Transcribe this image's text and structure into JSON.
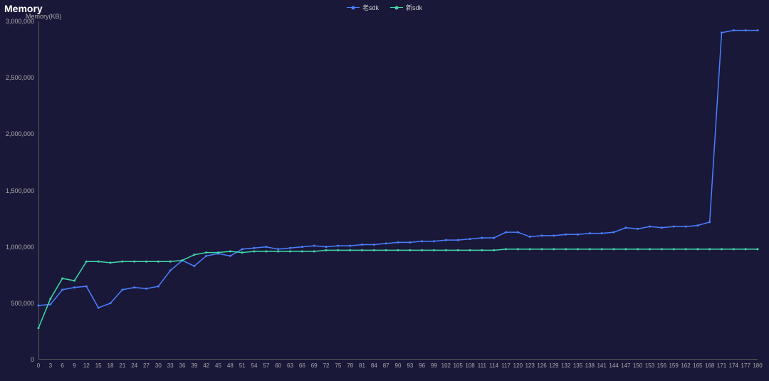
{
  "chart": {
    "title": "Memory",
    "y_axis_label": "Memory(KB)",
    "type": "line",
    "background_color": "#1a1838",
    "text_color": "#aaaaaa",
    "title_color": "#ffffff",
    "title_fontsize": 14,
    "tick_fontsize": 9,
    "axis_color": "#555555",
    "legend_position": "top-center",
    "legend_fontsize": 9,
    "marker_style": "circle",
    "marker_size": 3,
    "line_width": 1.5,
    "x": {
      "ticks": [
        0,
        3,
        6,
        9,
        12,
        15,
        18,
        21,
        24,
        27,
        30,
        33,
        36,
        39,
        42,
        45,
        48,
        51,
        54,
        57,
        60,
        63,
        66,
        69,
        72,
        75,
        78,
        81,
        84,
        87,
        90,
        93,
        96,
        99,
        102,
        105,
        108,
        111,
        114,
        117,
        120,
        123,
        126,
        129,
        132,
        135,
        138,
        141,
        144,
        147,
        150,
        153,
        156,
        159,
        162,
        165,
        168,
        171,
        174,
        177,
        180
      ],
      "min": 0,
      "max": 180
    },
    "y": {
      "ticks": [
        0,
        500000,
        1000000,
        1500000,
        2000000,
        2500000,
        3000000
      ],
      "tick_labels": [
        "0",
        "500,000",
        "1,000,000",
        "1,500,000",
        "2,000,000",
        "2,500,000",
        "3,000,000"
      ],
      "min": 0,
      "max": 3000000
    },
    "series": [
      {
        "name": "老sdk",
        "color": "#4a7fff",
        "values": [
          480000,
          490000,
          620000,
          640000,
          650000,
          460000,
          500000,
          620000,
          640000,
          630000,
          650000,
          790000,
          880000,
          830000,
          920000,
          940000,
          920000,
          980000,
          990000,
          1000000,
          980000,
          990000,
          1000000,
          1010000,
          1000000,
          1010000,
          1010000,
          1020000,
          1020000,
          1030000,
          1040000,
          1040000,
          1050000,
          1050000,
          1060000,
          1060000,
          1070000,
          1080000,
          1080000,
          1130000,
          1130000,
          1090000,
          1100000,
          1100000,
          1110000,
          1110000,
          1120000,
          1120000,
          1130000,
          1170000,
          1160000,
          1180000,
          1170000,
          1180000,
          1180000,
          1190000,
          1220000,
          2900000,
          2920000,
          2920000,
          2920000
        ]
      },
      {
        "name": "新sdk",
        "color": "#3fd9a8",
        "values": [
          280000,
          540000,
          720000,
          700000,
          870000,
          870000,
          860000,
          870000,
          870000,
          870000,
          870000,
          870000,
          880000,
          930000,
          950000,
          950000,
          960000,
          950000,
          960000,
          960000,
          960000,
          960000,
          960000,
          960000,
          970000,
          970000,
          970000,
          970000,
          970000,
          970000,
          970000,
          970000,
          970000,
          970000,
          970000,
          970000,
          970000,
          970000,
          970000,
          980000,
          980000,
          980000,
          980000,
          980000,
          980000,
          980000,
          980000,
          980000,
          980000,
          980000,
          980000,
          980000,
          980000,
          980000,
          980000,
          980000,
          980000,
          980000,
          980000,
          980000,
          980000
        ]
      }
    ]
  }
}
